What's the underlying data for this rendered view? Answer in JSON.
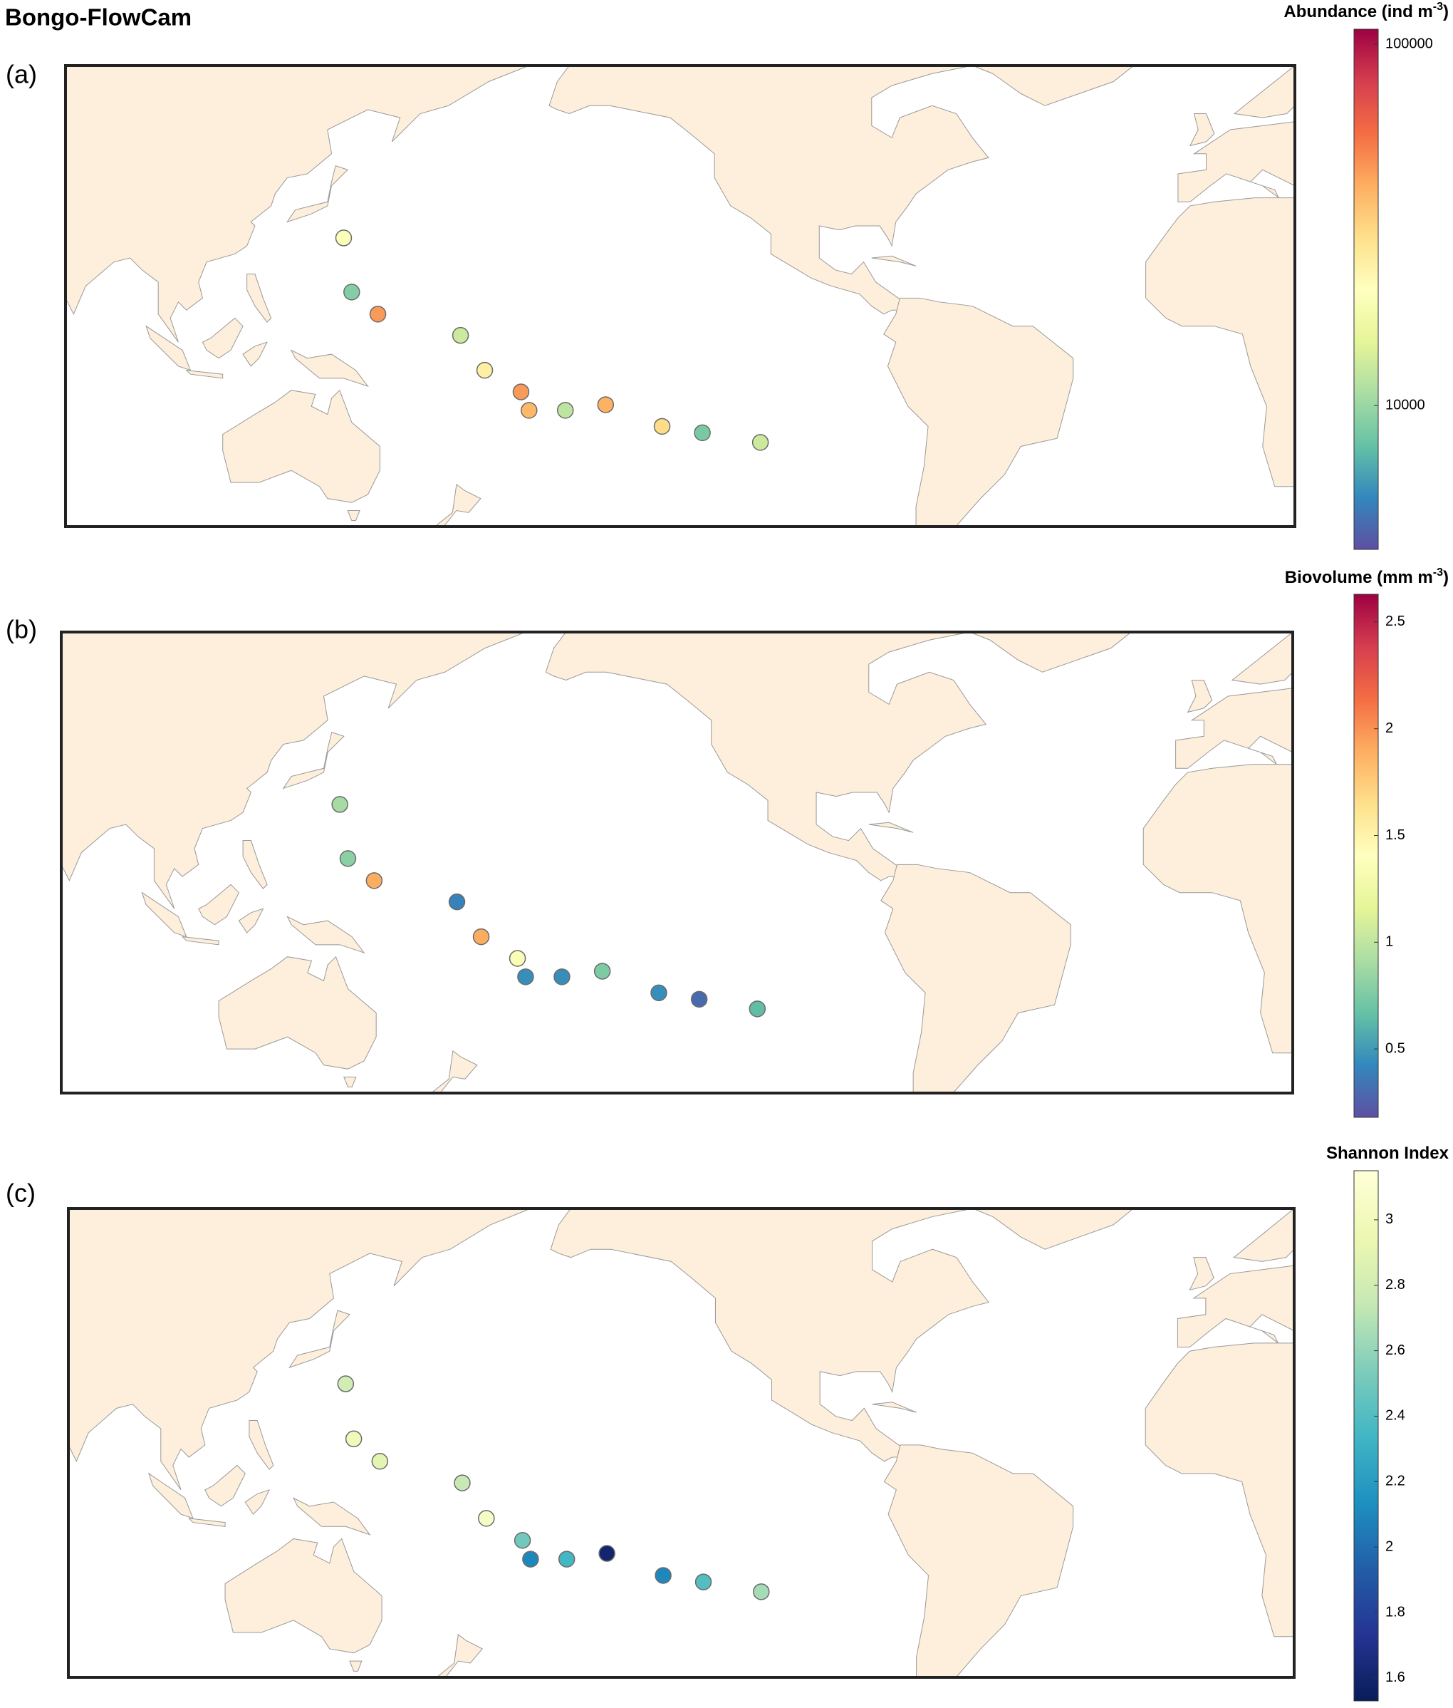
{
  "title": "Bongo-FlowCam",
  "chart_data": [
    {
      "type": "map",
      "panel_label": "(a)",
      "colorbar_title": {
        "text": "Abundance (ind m",
        "sup": "-3",
        "tail": ")"
      },
      "xlim": [
        75,
        380
      ],
      "ylim": [
        -45,
        70
      ],
      "lon": [
        144,
        146,
        152.5,
        173,
        179,
        188,
        190,
        199,
        209,
        223,
        233,
        247.4
      ],
      "lat": [
        27,
        13.5,
        8,
        2.7,
        -6,
        -11.4,
        -16,
        -16,
        -14.6,
        -20,
        -21.6,
        -24
      ],
      "values": [
        20000,
        9000,
        45000,
        13000,
        25000,
        45000,
        38000,
        12000,
        40000,
        30000,
        8500,
        13000
      ],
      "clim": [
        4000,
        110000
      ],
      "log": true,
      "cticks": [
        10000,
        100000
      ],
      "colormap": [
        "#5e4fa2",
        "#3288bd",
        "#66c2a5",
        "#abdda4",
        "#e6f598",
        "#ffffbf",
        "#fee08b",
        "#fdae61",
        "#f46d43",
        "#d53e4f",
        "#9e0142"
      ]
    },
    {
      "type": "map",
      "panel_label": "(b)",
      "colorbar_title": {
        "text": "Biovolume (mm m",
        "sup": "-3",
        "tail": ")"
      },
      "xlim": [
        75,
        380
      ],
      "ylim": [
        -45,
        70
      ],
      "lon": [
        144,
        146,
        152.5,
        173,
        179,
        188,
        190,
        199,
        209,
        223,
        233,
        247.4
      ],
      "lat": [
        27,
        13.5,
        8,
        2.7,
        -6,
        -11.4,
        -16,
        -16,
        -14.6,
        -20,
        -21.6,
        -24
      ],
      "values": [
        0.9,
        0.8,
        1.9,
        0.4,
        1.9,
        1.35,
        0.45,
        0.45,
        0.75,
        0.45,
        0.3,
        0.65
      ],
      "clim": [
        0.18,
        2.63
      ],
      "log": false,
      "cticks": [
        0.5,
        1,
        1.5,
        2,
        2.5
      ],
      "colormap": [
        "#5e4fa2",
        "#3288bd",
        "#66c2a5",
        "#abdda4",
        "#e6f598",
        "#ffffbf",
        "#fee08b",
        "#fdae61",
        "#f46d43",
        "#d53e4f",
        "#9e0142"
      ]
    },
    {
      "type": "map",
      "panel_label": "(c)",
      "colorbar_title": {
        "text": "Shannon Index"
      },
      "xlim": [
        75,
        380
      ],
      "ylim": [
        -45,
        70
      ],
      "lon": [
        144,
        146,
        152.5,
        173,
        179,
        188,
        190,
        199,
        209,
        223,
        233,
        247.4
      ],
      "lat": [
        27,
        13.5,
        8,
        2.7,
        -6,
        -11.4,
        -16,
        -16,
        -14.6,
        -20,
        -21.6,
        -24
      ],
      "values": [
        2.8,
        3.0,
        2.9,
        2.75,
        3.05,
        2.5,
        2.1,
        2.35,
        1.6,
        2.1,
        2.4,
        2.65
      ],
      "clim": [
        1.53,
        3.15
      ],
      "log": false,
      "cticks": [
        1.6,
        1.8,
        2,
        2.2,
        2.4,
        2.6,
        2.8,
        3
      ],
      "colormap": [
        "#081d58",
        "#253494",
        "#225ea8",
        "#1d91c0",
        "#41b6c4",
        "#7fcdbb",
        "#c7e9b4",
        "#edf8b1",
        "#ffffd9"
      ]
    }
  ]
}
